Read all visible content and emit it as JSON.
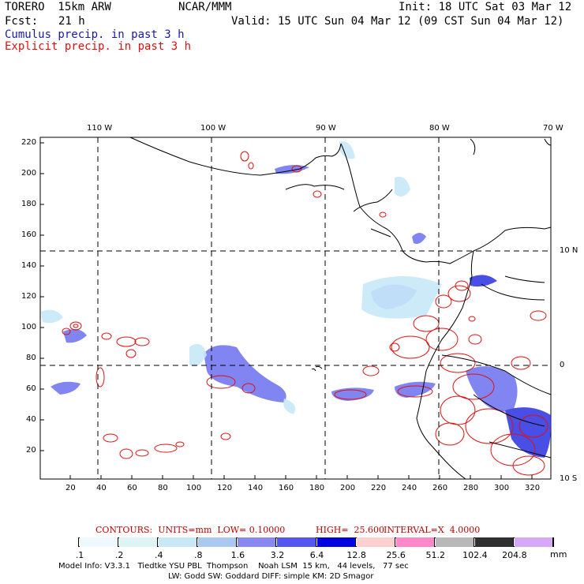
{
  "header": {
    "model_name": "TORERO  15km ARW",
    "org": "NCAR/MMM",
    "init": "Init: 18 UTC Sat 03 Mar 12",
    "fcst_label": "Fcst:",
    "fcst_hours": "21 h",
    "valid": "Valid: 15 UTC Sun 04 Mar 12 (09 CST Sun 04 Mar 12)",
    "legend_cumulus": "Cumulus precip. in past 3 h",
    "legend_explicit": "Explicit precip. in past 3 h"
  },
  "colors": {
    "cumulus_text": "#1a1aa0",
    "explicit_text": "#e01010",
    "contour_red": "#e01010",
    "contour_info_text": "#c00000"
  },
  "map": {
    "lon_labels": [
      "110 W",
      "100 W",
      "90 W",
      "80 W",
      "70 W"
    ],
    "lat_labels": [
      "10 N",
      "0",
      "10 S"
    ],
    "y_ticks": [
      "220",
      "200",
      "180",
      "160",
      "140",
      "120",
      "100",
      "80",
      "60",
      "40",
      "20"
    ],
    "x_ticks": [
      "20",
      "40",
      "60",
      "80",
      "100",
      "120",
      "140",
      "160",
      "180",
      "200",
      "220",
      "240",
      "260",
      "280",
      "300",
      "320"
    ]
  },
  "contour_info": {
    "units": "CONTOURS:  UNITS=mm  LOW= 0.10000",
    "high": "HIGH=  25.600",
    "interval": "INTERVAL=X  4.0000"
  },
  "colorbar": {
    "unit": "mm",
    "labels": [
      ".1",
      ".2",
      ".4",
      ".8",
      "1.6",
      "3.2",
      "6.4",
      "12.8",
      "25.6",
      "51.2",
      "102.4",
      "204.8"
    ],
    "colors": [
      "#ffffff",
      "#eef9ff",
      "#dff4f4",
      "#c8e8f8",
      "#aac8f0",
      "#8888f0",
      "#5555f0",
      "#0000e0",
      "#ffd0d0",
      "#ff88c8",
      "#b8b8b8",
      "#303030",
      "#d8a8f8"
    ]
  },
  "footer": {
    "line1": "Model Info: V3.3.1   Tiedtke YSU PBL  Thompson    Noah LSM  15 km,   44 levels,   77 sec",
    "line2": "LW: Godd SW: Goddard DIFF: simple KM: 2D Smagor"
  }
}
